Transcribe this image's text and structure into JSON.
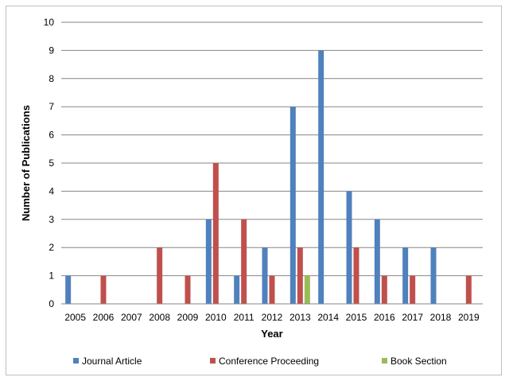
{
  "chart_data": {
    "type": "bar",
    "categories": [
      "2005",
      "2006",
      "2007",
      "2008",
      "2009",
      "2010",
      "2011",
      "2012",
      "2013",
      "2014",
      "2015",
      "2016",
      "2017",
      "2018",
      "2019"
    ],
    "series": [
      {
        "name": "Journal Article",
        "color": "#4f81bd",
        "values": [
          1,
          0,
          0,
          0,
          0,
          3,
          1,
          2,
          7,
          9,
          4,
          3,
          2,
          2,
          0
        ]
      },
      {
        "name": "Conference Proceeding",
        "color": "#c0504d",
        "values": [
          0,
          1,
          0,
          2,
          1,
          5,
          3,
          1,
          2,
          0,
          2,
          1,
          1,
          0,
          1
        ]
      },
      {
        "name": "Book Section",
        "color": "#9bbb59",
        "values": [
          0,
          0,
          0,
          0,
          0,
          0,
          0,
          0,
          1,
          0,
          0,
          0,
          0,
          0,
          0
        ]
      }
    ],
    "title": "",
    "xlabel": "Year",
    "ylabel": "Number of Publications",
    "ylim": [
      0,
      10
    ],
    "yticks": [
      "0",
      "1",
      "2",
      "3",
      "4",
      "5",
      "6",
      "7",
      "8",
      "9",
      "10"
    ],
    "grid": true,
    "legend_position": "bottom"
  }
}
